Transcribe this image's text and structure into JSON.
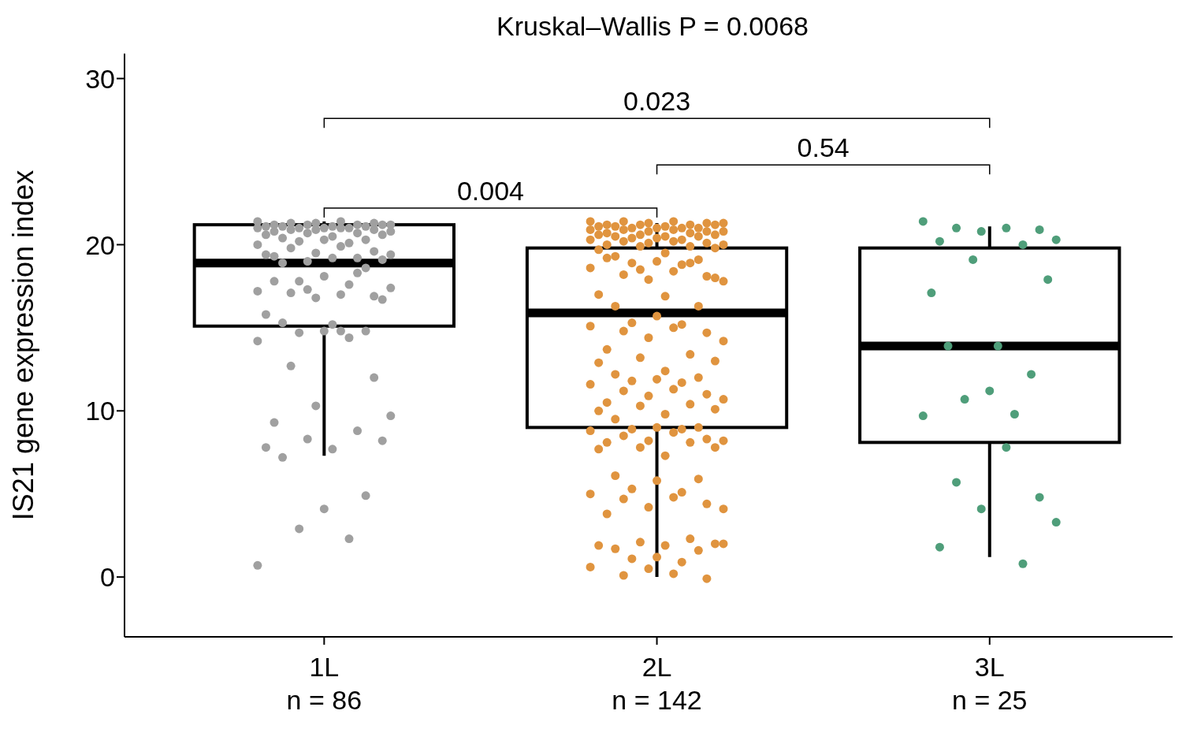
{
  "chart_data": {
    "type": "box",
    "title": "Kruskal–Wallis P = 0.0068",
    "ylabel": "IS21 gene expression index",
    "categories": [
      "1L\nn = 86",
      "2L\nn = 142",
      "3L\nn = 25"
    ],
    "boxes": [
      {
        "low": 7.3,
        "q1": 15.1,
        "median": 18.9,
        "q3": 21.2,
        "high": 21.4
      },
      {
        "low": 0,
        "q1": 9.0,
        "median": 15.9,
        "q3": 19.8,
        "high": 21.3
      },
      {
        "low": 1.2,
        "q1": 8.1,
        "median": 13.9,
        "q3": 19.8,
        "high": 21.1
      }
    ],
    "series": [
      {
        "type": "scatter",
        "color": "#a0a0a0",
        "x": [
          "1L\nn = 86",
          "1L\nn = 86",
          "1L\nn = 86",
          "1L\nn = 86",
          "1L\nn = 86",
          "1L\nn = 86",
          "1L\nn = 86",
          "1L\nn = 86",
          "1L\nn = 86",
          "1L\nn = 86",
          "1L\nn = 86",
          "1L\nn = 86",
          "1L\nn = 86",
          "1L\nn = 86",
          "1L\nn = 86",
          "1L\nn = 86",
          "1L\nn = 86",
          "1L\nn = 86",
          "1L\nn = 86",
          "1L\nn = 86",
          "1L\nn = 86",
          "1L\nn = 86",
          "1L\nn = 86",
          "1L\nn = 86",
          "1L\nn = 86",
          "1L\nn = 86",
          "1L\nn = 86",
          "1L\nn = 86",
          "1L\nn = 86",
          "1L\nn = 86",
          "1L\nn = 86",
          "1L\nn = 86",
          "1L\nn = 86",
          "1L\nn = 86",
          "1L\nn = 86",
          "1L\nn = 86",
          "1L\nn = 86",
          "1L\nn = 86",
          "1L\nn = 86",
          "1L\nn = 86",
          "1L\nn = 86",
          "1L\nn = 86",
          "1L\nn = 86",
          "1L\nn = 86",
          "1L\nn = 86",
          "1L\nn = 86",
          "1L\nn = 86",
          "1L\nn = 86",
          "1L\nn = 86",
          "1L\nn = 86",
          "1L\nn = 86",
          "1L\nn = 86",
          "1L\nn = 86",
          "1L\nn = 86",
          "1L\nn = 86",
          "1L\nn = 86",
          "1L\nn = 86",
          "1L\nn = 86",
          "1L\nn = 86",
          "1L\nn = 86",
          "1L\nn = 86",
          "1L\nn = 86",
          "1L\nn = 86",
          "1L\nn = 86",
          "1L\nn = 86",
          "1L\nn = 86",
          "1L\nn = 86",
          "1L\nn = 86",
          "1L\nn = 86",
          "1L\nn = 86",
          "1L\nn = 86",
          "1L\nn = 86",
          "1L\nn = 86",
          "1L\nn = 86",
          "1L\nn = 86",
          "1L\nn = 86",
          "1L\nn = 86",
          "1L\nn = 86",
          "1L\nn = 86",
          "1L\nn = 86",
          "1L\nn = 86",
          "1L\nn = 86",
          "1L\nn = 86",
          "1L\nn = 86",
          "1L\nn = 86",
          "1L\nn = 86"
        ],
        "values": [
          21.4,
          21.4,
          21.3,
          21.3,
          21.3,
          21.2,
          21.2,
          21.2,
          21.2,
          21.2,
          21.1,
          21.1,
          21.1,
          21.1,
          21.0,
          21.0,
          21.0,
          21.0,
          21.0,
          20.9,
          20.9,
          20.9,
          20.8,
          20.8,
          20.7,
          20.7,
          20.6,
          20.6,
          20.5,
          20.4,
          20.3,
          20.3,
          20.2,
          20.1,
          20.0,
          19.9,
          19.8,
          19.6,
          19.5,
          19.4,
          19.3,
          19.2,
          19.0,
          19.1,
          19.4,
          19.2,
          18.9,
          18.6,
          18.1,
          17.8,
          17.6,
          17.2,
          17.0,
          17.1,
          16.9,
          16.8,
          17.4,
          17.8,
          18.3,
          17.3,
          16.7,
          15.8,
          15.2,
          15.3,
          14.8,
          14.8,
          14.7,
          14.4,
          14.2,
          14.8,
          12.7,
          12.0,
          10.3,
          9.7,
          9.3,
          8.8,
          8.3,
          8.2,
          7.8,
          7.7,
          7.2,
          4.9,
          4.1,
          2.9,
          2.3,
          0.7
        ]
      },
      {
        "type": "scatter",
        "color": "#e0943f",
        "x": [
          "2L\nn = 142",
          "2L\nn = 142",
          "2L\nn = 142",
          "2L\nn = 142",
          "2L\nn = 142",
          "2L\nn = 142",
          "2L\nn = 142",
          "2L\nn = 142",
          "2L\nn = 142",
          "2L\nn = 142",
          "2L\nn = 142",
          "2L\nn = 142",
          "2L\nn = 142",
          "2L\nn = 142",
          "2L\nn = 142",
          "2L\nn = 142",
          "2L\nn = 142",
          "2L\nn = 142",
          "2L\nn = 142",
          "2L\nn = 142",
          "2L\nn = 142",
          "2L\nn = 142",
          "2L\nn = 142",
          "2L\nn = 142",
          "2L\nn = 142",
          "2L\nn = 142",
          "2L\nn = 142",
          "2L\nn = 142",
          "2L\nn = 142",
          "2L\nn = 142",
          "2L\nn = 142",
          "2L\nn = 142",
          "2L\nn = 142",
          "2L\nn = 142",
          "2L\nn = 142",
          "2L\nn = 142",
          "2L\nn = 142",
          "2L\nn = 142",
          "2L\nn = 142",
          "2L\nn = 142",
          "2L\nn = 142",
          "2L\nn = 142",
          "2L\nn = 142",
          "2L\nn = 142",
          "2L\nn = 142",
          "2L\nn = 142",
          "2L\nn = 142",
          "2L\nn = 142",
          "2L\nn = 142",
          "2L\nn = 142",
          "2L\nn = 142",
          "2L\nn = 142",
          "2L\nn = 142",
          "2L\nn = 142",
          "2L\nn = 142",
          "2L\nn = 142",
          "2L\nn = 142",
          "2L\nn = 142",
          "2L\nn = 142",
          "2L\nn = 142",
          "2L\nn = 142",
          "2L\nn = 142",
          "2L\nn = 142",
          "2L\nn = 142",
          "2L\nn = 142",
          "2L\nn = 142",
          "2L\nn = 142",
          "2L\nn = 142",
          "2L\nn = 142",
          "2L\nn = 142",
          "2L\nn = 142",
          "2L\nn = 142",
          "2L\nn = 142",
          "2L\nn = 142",
          "2L\nn = 142",
          "2L\nn = 142",
          "2L\nn = 142",
          "2L\nn = 142",
          "2L\nn = 142",
          "2L\nn = 142",
          "2L\nn = 142",
          "2L\nn = 142",
          "2L\nn = 142",
          "2L\nn = 142",
          "2L\nn = 142",
          "2L\nn = 142",
          "2L\nn = 142",
          "2L\nn = 142",
          "2L\nn = 142",
          "2L\nn = 142",
          "2L\nn = 142",
          "2L\nn = 142",
          "2L\nn = 142",
          "2L\nn = 142",
          "2L\nn = 142",
          "2L\nn = 142",
          "2L\nn = 142",
          "2L\nn = 142",
          "2L\nn = 142",
          "2L\nn = 142",
          "2L\nn = 142",
          "2L\nn = 142",
          "2L\nn = 142",
          "2L\nn = 142",
          "2L\nn = 142",
          "2L\nn = 142",
          "2L\nn = 142",
          "2L\nn = 142",
          "2L\nn = 142",
          "2L\nn = 142",
          "2L\nn = 142",
          "2L\nn = 142",
          "2L\nn = 142",
          "2L\nn = 142",
          "2L\nn = 142",
          "2L\nn = 142",
          "2L\nn = 142",
          "2L\nn = 142",
          "2L\nn = 142",
          "2L\nn = 142",
          "2L\nn = 142",
          "2L\nn = 142",
          "2L\nn = 142",
          "2L\nn = 142",
          "2L\nn = 142",
          "2L\nn = 142",
          "2L\nn = 142",
          "2L\nn = 142",
          "2L\nn = 142",
          "2L\nn = 142",
          "2L\nn = 142",
          "2L\nn = 142",
          "2L\nn = 142",
          "2L\nn = 142",
          "2L\nn = 142",
          "2L\nn = 142",
          "2L\nn = 142",
          "2L\nn = 142",
          "2L\nn = 142",
          "2L\nn = 142",
          "2L\nn = 142",
          "2L\nn = 142"
        ],
        "values": [
          21.4,
          21.4,
          21.4,
          21.3,
          21.3,
          21.3,
          21.2,
          21.2,
          21.2,
          21.2,
          21.1,
          21.1,
          21.1,
          21.0,
          21.0,
          21.0,
          21.0,
          20.9,
          20.9,
          20.9,
          20.8,
          20.8,
          20.8,
          20.7,
          20.7,
          20.6,
          20.6,
          20.6,
          20.5,
          20.5,
          20.5,
          20.4,
          20.4,
          20.3,
          20.3,
          20.2,
          20.2,
          20.1,
          20.1,
          20.0,
          20.0,
          19.9,
          19.9,
          19.8,
          19.7,
          19.5,
          19.3,
          19.1,
          19.0,
          18.9,
          18.8,
          18.6,
          18.4,
          18.2,
          18.1,
          17.9,
          17.8,
          19.2,
          18.9,
          18.5,
          18.0,
          17.0,
          16.9,
          16.3,
          16.3,
          15.7,
          15.3,
          15.2,
          15.1,
          15.0,
          14.8,
          14.7,
          14.4,
          14.2,
          13.7,
          13.4,
          13.2,
          13.0,
          12.9,
          12.4,
          12.2,
          12.0,
          11.9,
          11.8,
          11.7,
          11.6,
          11.3,
          11.2,
          11.0,
          10.9,
          10.7,
          10.5,
          10.4,
          10.3,
          10.1,
          10.0,
          9.8,
          9.5,
          9.0,
          9.0,
          8.9,
          8.9,
          8.8,
          8.7,
          8.5,
          8.3,
          8.2,
          8.2,
          8.1,
          8.1,
          7.8,
          7.8,
          7.7,
          7.3,
          6.1,
          5.9,
          5.8,
          5.3,
          5.1,
          5.0,
          4.8,
          4.7,
          4.4,
          4.2,
          4.1,
          3.8,
          2.3,
          2.1,
          2.0,
          1.9,
          1.9,
          1.7,
          1.6,
          1.2,
          1.1,
          0.9,
          0.6,
          0.2,
          0.1,
          -0.1,
          0.5,
          2.0
        ]
      },
      {
        "type": "scatter",
        "color": "#4f9e7a",
        "x": [
          "3L\nn = 25",
          "3L\nn = 25",
          "3L\nn = 25",
          "3L\nn = 25",
          "3L\nn = 25",
          "3L\nn = 25",
          "3L\nn = 25",
          "3L\nn = 25",
          "3L\nn = 25",
          "3L\nn = 25",
          "3L\nn = 25",
          "3L\nn = 25",
          "3L\nn = 25",
          "3L\nn = 25",
          "3L\nn = 25",
          "3L\nn = 25",
          "3L\nn = 25",
          "3L\nn = 25",
          "3L\nn = 25",
          "3L\nn = 25",
          "3L\nn = 25",
          "3L\nn = 25",
          "3L\nn = 25",
          "3L\nn = 25",
          "3L\nn = 25"
        ],
        "values": [
          21.4,
          21.0,
          21.0,
          20.9,
          20.8,
          20.3,
          20.2,
          20.0,
          19.1,
          17.9,
          17.1,
          13.9,
          13.9,
          12.2,
          11.2,
          10.7,
          9.8,
          9.7,
          7.8,
          5.7,
          4.8,
          4.1,
          3.3,
          1.8,
          0.8
        ]
      }
    ],
    "marker": "circle",
    "ylim": [
      -3.6,
      31.5
    ],
    "yticks": [
      0,
      10,
      20,
      30
    ],
    "annotations": [
      "0.023",
      "0.54",
      "0.004"
    ]
  }
}
